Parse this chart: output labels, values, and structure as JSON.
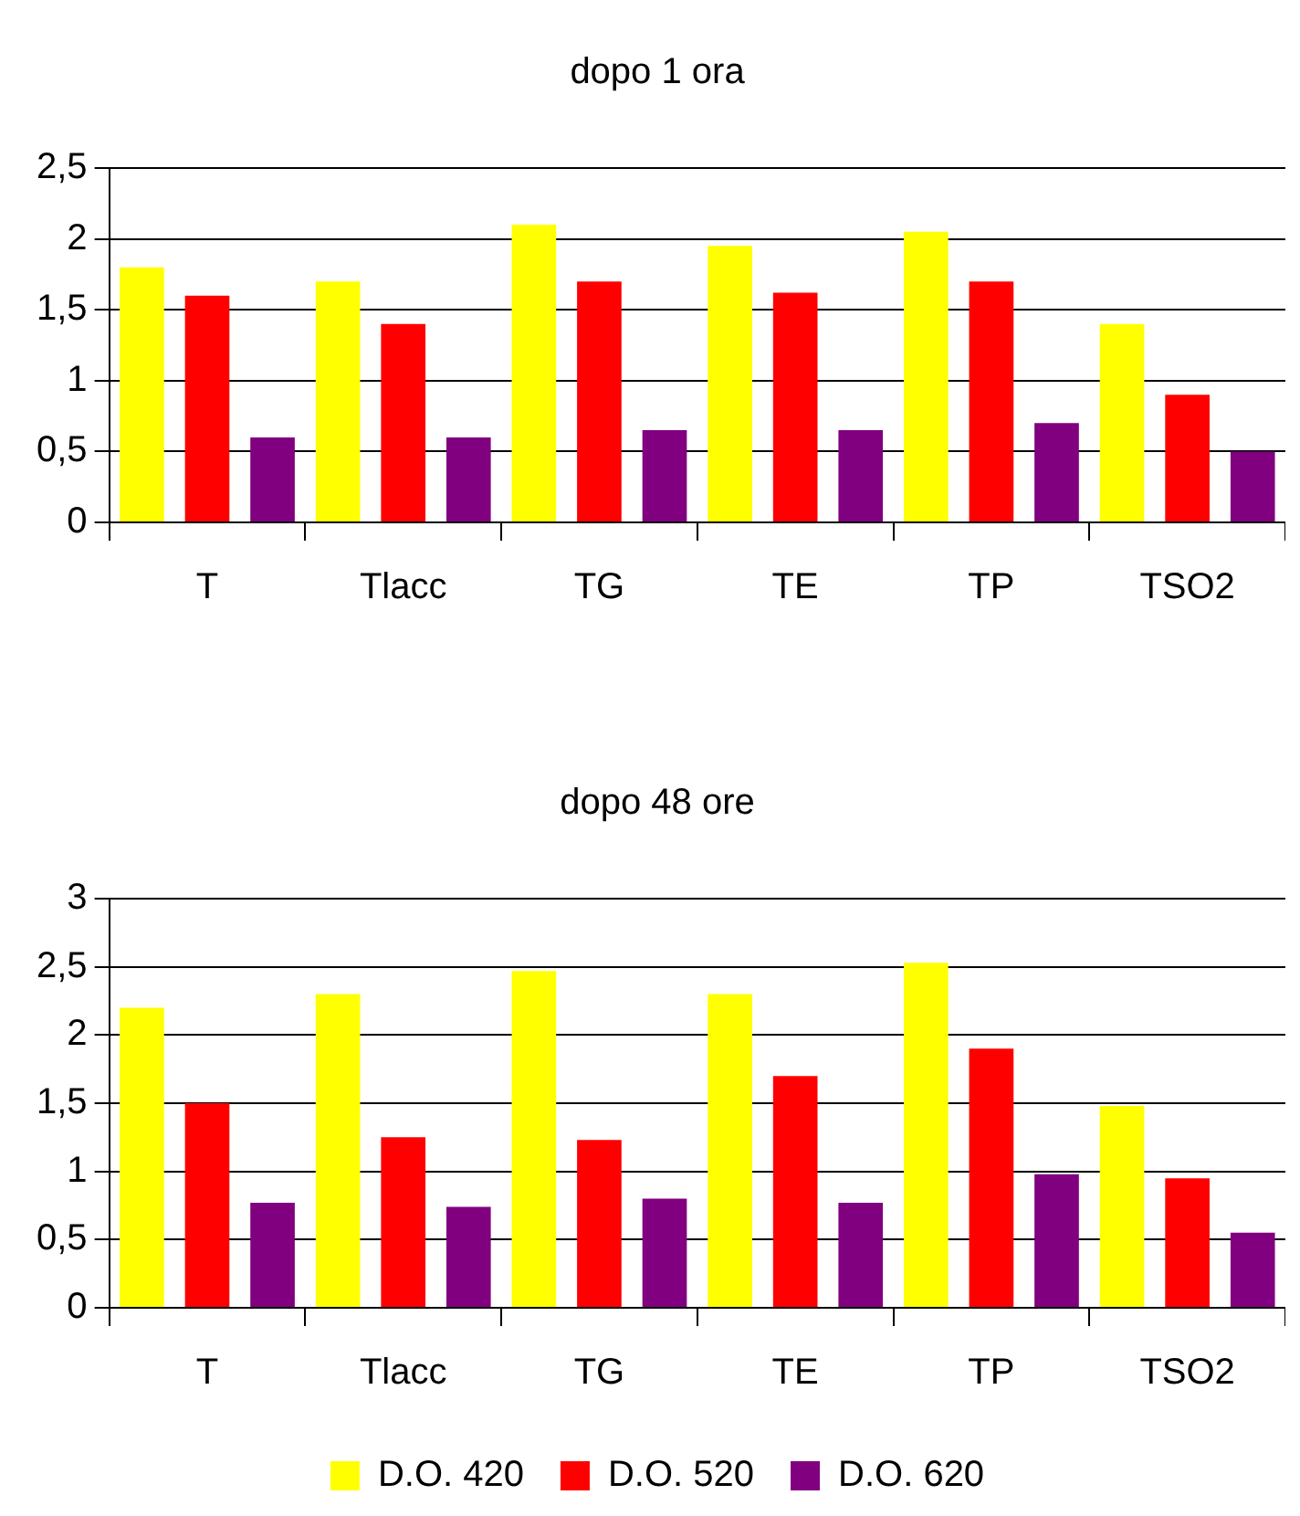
{
  "chart_data": [
    {
      "type": "bar",
      "title": "dopo 1 ora",
      "categories": [
        "T",
        "Tlacc",
        "TG",
        "TE",
        "TP",
        "TSO2"
      ],
      "series": [
        {
          "color": "#ffff00",
          "values": [
            1.8,
            1.7,
            2.1,
            1.95,
            2.05,
            1.4
          ]
        },
        {
          "color": "#ff0000",
          "values": [
            1.6,
            1.4,
            1.7,
            1.62,
            1.7,
            0.9
          ]
        },
        {
          "color": "#800080",
          "values": [
            0.6,
            0.6,
            0.65,
            0.65,
            0.7,
            0.5
          ]
        }
      ],
      "ylim": [
        0,
        2.5
      ],
      "yticks": [
        0,
        {
          "value": 0.5,
          "label": "0,5"
        },
        1,
        {
          "value": 1.5,
          "label": "1,5"
        },
        2,
        {
          "value": 2.5,
          "label": "2,5"
        }
      ],
      "grid": "y",
      "legend": false
    },
    {
      "type": "bar",
      "title": "dopo 48 ore",
      "categories": [
        "T",
        "Tlacc",
        "TG",
        "TE",
        "TP",
        "TSO2"
      ],
      "series": [
        {
          "name": "D.O. 420",
          "color": "#ffff00",
          "values": [
            2.2,
            2.3,
            2.47,
            2.3,
            2.53,
            1.48
          ]
        },
        {
          "name": "D.O. 520",
          "color": "#ff0000",
          "values": [
            1.5,
            1.25,
            1.23,
            1.7,
            1.9,
            0.95
          ]
        },
        {
          "name": "D.O. 620",
          "color": "#800080",
          "values": [
            0.77,
            0.74,
            0.8,
            0.77,
            0.98,
            0.55
          ]
        }
      ],
      "ylim": [
        0,
        3
      ],
      "yticks": [
        0,
        {
          "value": 0.5,
          "label": "0,5"
        },
        1,
        {
          "value": 1.5,
          "label": "1,5"
        },
        2,
        {
          "value": 2.5,
          "label": "2,5"
        },
        3
      ],
      "grid": "y",
      "legend": "bottom"
    }
  ]
}
